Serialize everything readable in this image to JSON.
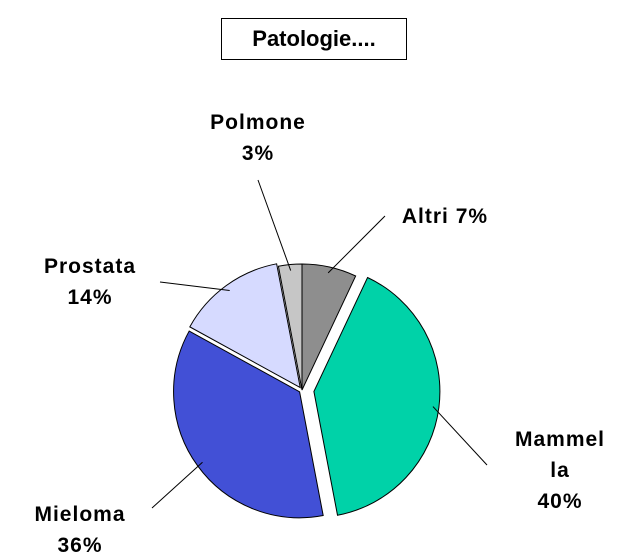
{
  "chart_data": {
    "type": "pie",
    "title": "Patologie....",
    "categories": [
      "Altri",
      "Mammella",
      "Mieloma",
      "Prostata",
      "Polmone"
    ],
    "values": [
      7,
      40,
      36,
      14,
      3
    ],
    "value_labels": [
      "7%",
      "40%",
      "36%",
      "14%",
      "3%"
    ],
    "colors": [
      "#8e8e8e",
      "#00d2a8",
      "#4250d6",
      "#d6daff",
      "#c6c6c6"
    ]
  }
}
